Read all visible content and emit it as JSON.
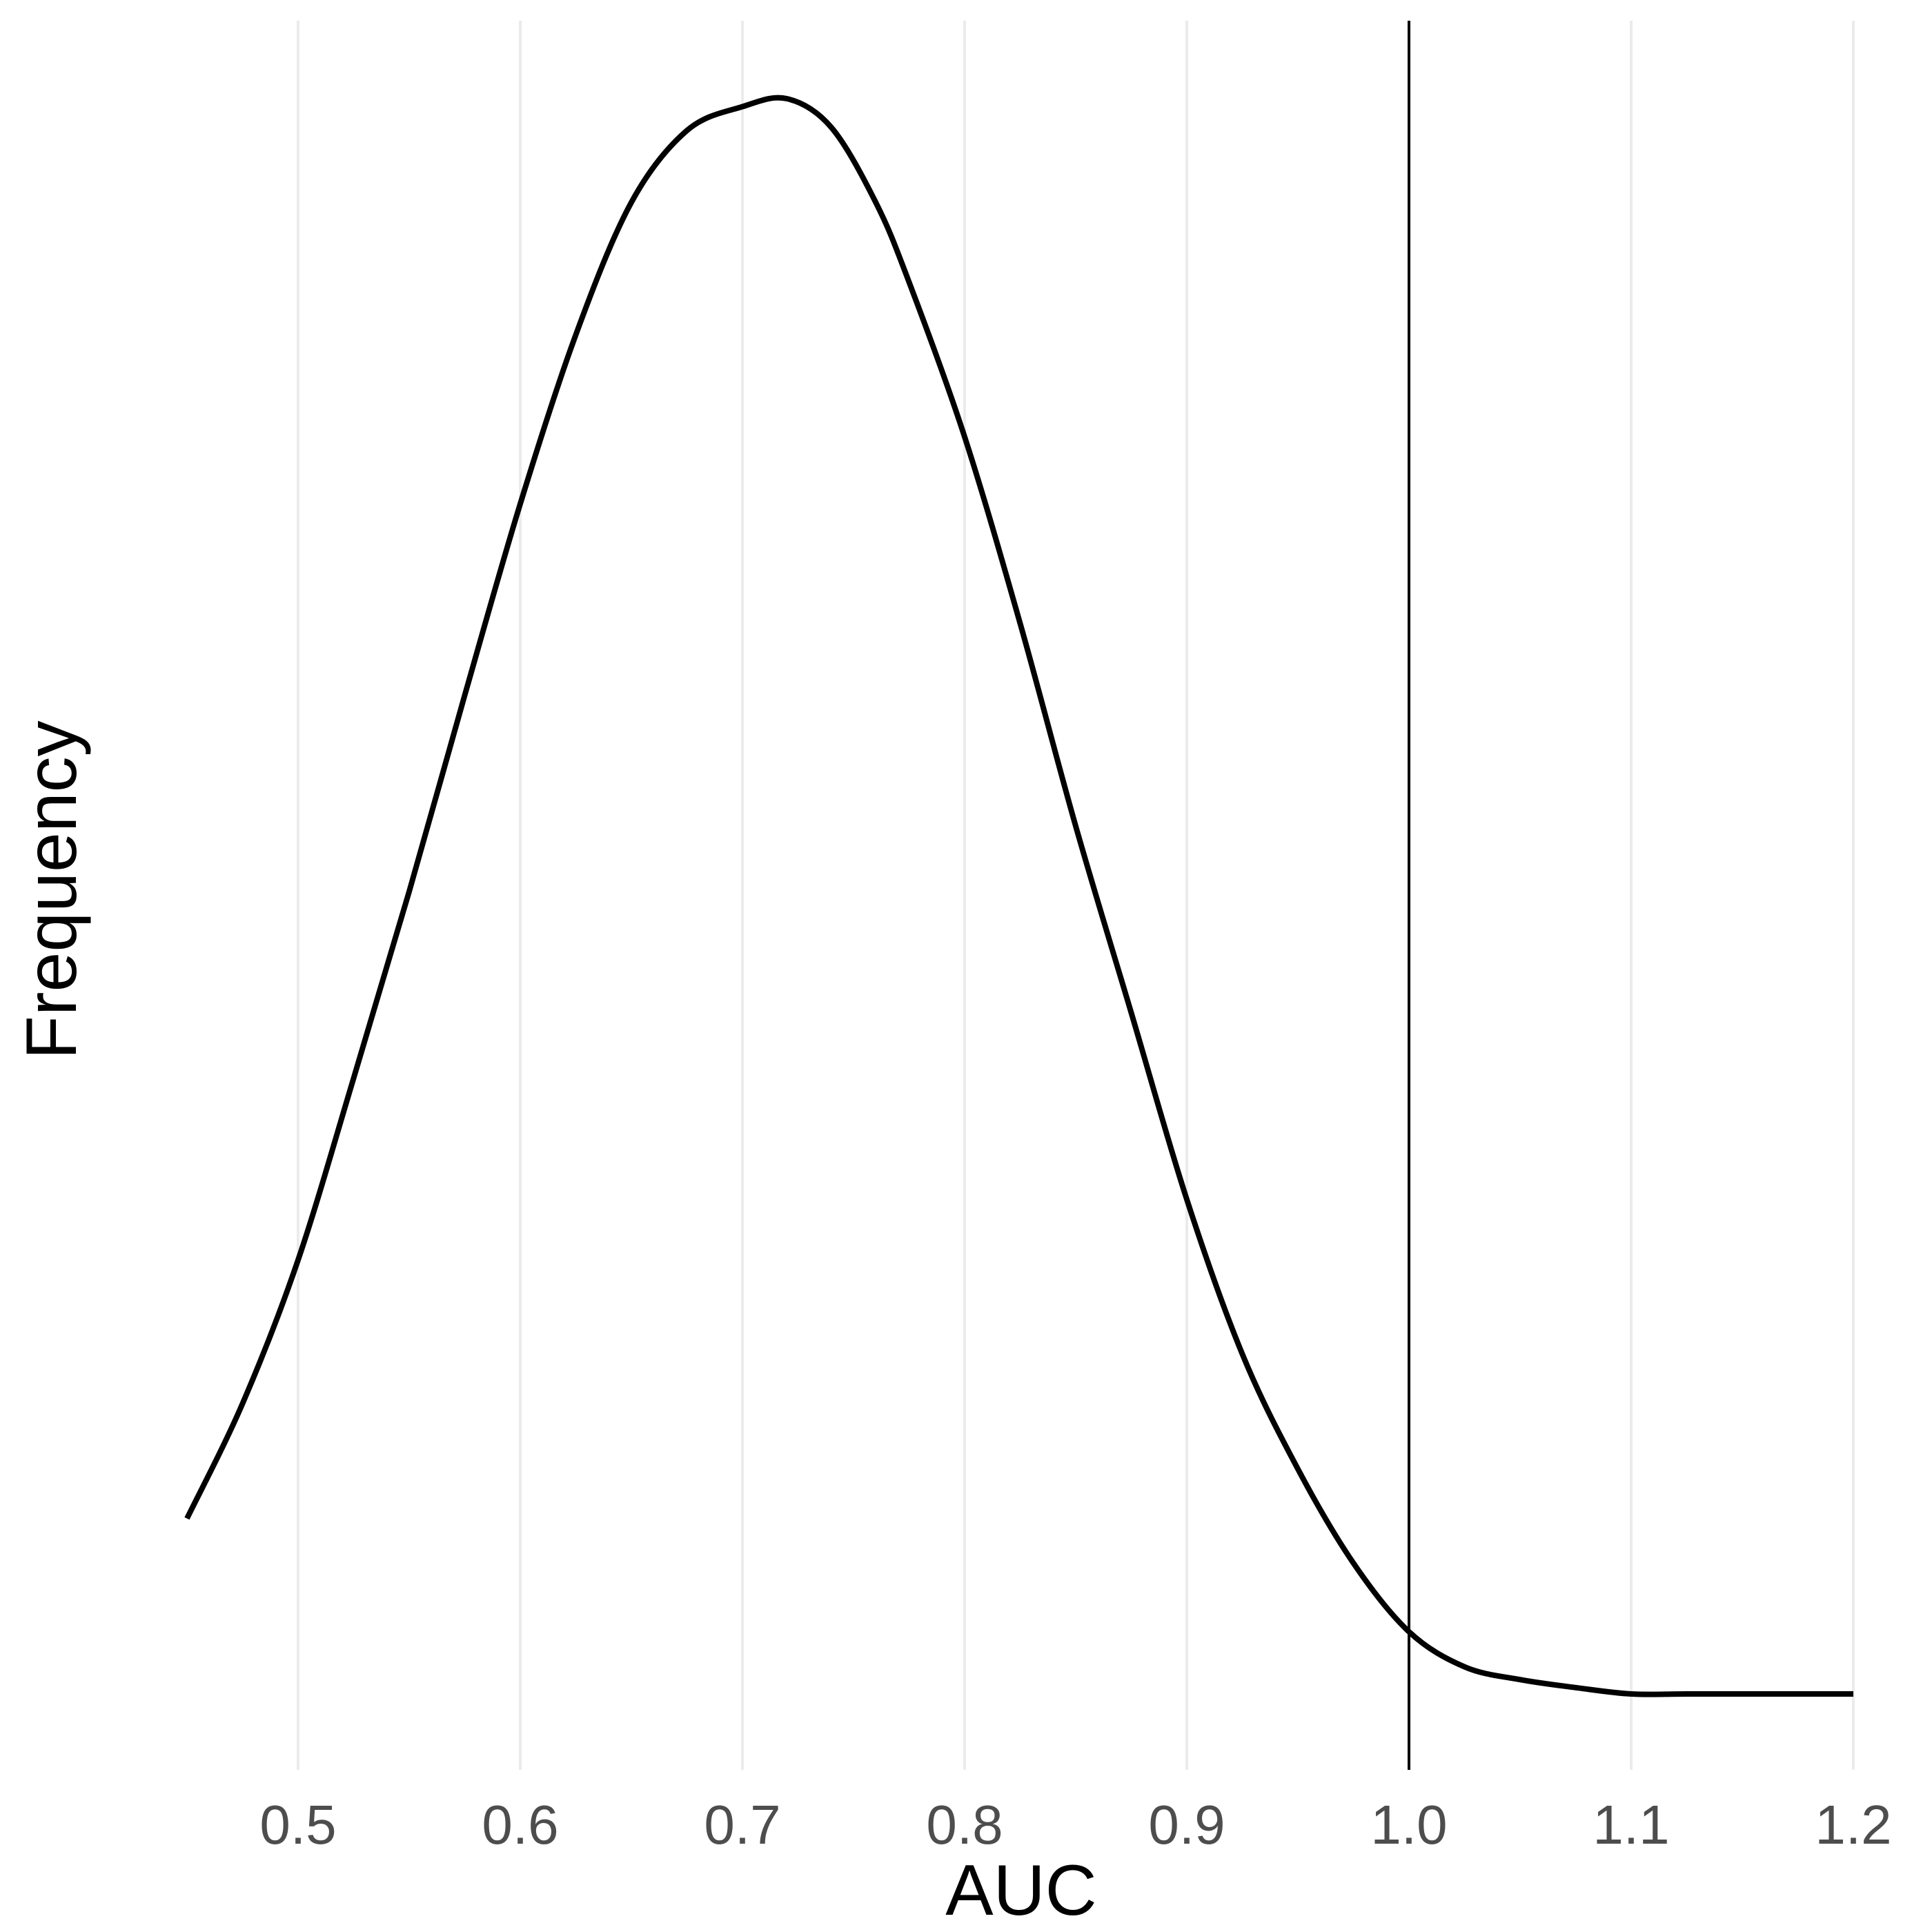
{
  "chart_data": {
    "type": "line",
    "title": "",
    "xlabel": "AUC",
    "ylabel": "Frequency",
    "xlim": [
      0.45,
      1.2
    ],
    "x_ticks": [
      "0.5",
      "0.6",
      "0.7",
      "0.8",
      "0.9",
      "1.0",
      "1.1",
      "1.2"
    ],
    "y_ticks": [],
    "grid": "vertical major gridlines only",
    "reference_line": {
      "x": 1.0,
      "color": "#000000"
    },
    "series": [
      {
        "color": "#000000",
        "x": [
          0.45,
          0.475,
          0.5,
          0.525,
          0.55,
          0.575,
          0.6,
          0.625,
          0.65,
          0.675,
          0.7,
          0.72,
          0.74,
          0.76,
          0.775,
          0.8,
          0.825,
          0.85,
          0.875,
          0.9,
          0.925,
          0.95,
          0.975,
          1.0,
          1.025,
          1.05,
          1.075,
          1.1,
          1.125,
          1.15,
          1.175,
          1.2
        ],
        "y": [
          0.11,
          0.182,
          0.272,
          0.386,
          0.503,
          0.626,
          0.746,
          0.852,
          0.935,
          0.98,
          0.995,
          1.0,
          0.982,
          0.935,
          0.885,
          0.788,
          0.671,
          0.544,
          0.427,
          0.31,
          0.213,
          0.141,
          0.082,
          0.039,
          0.017,
          0.009,
          0.004,
          0.0,
          0.0,
          0.0,
          0.0,
          0.0
        ]
      }
    ]
  }
}
